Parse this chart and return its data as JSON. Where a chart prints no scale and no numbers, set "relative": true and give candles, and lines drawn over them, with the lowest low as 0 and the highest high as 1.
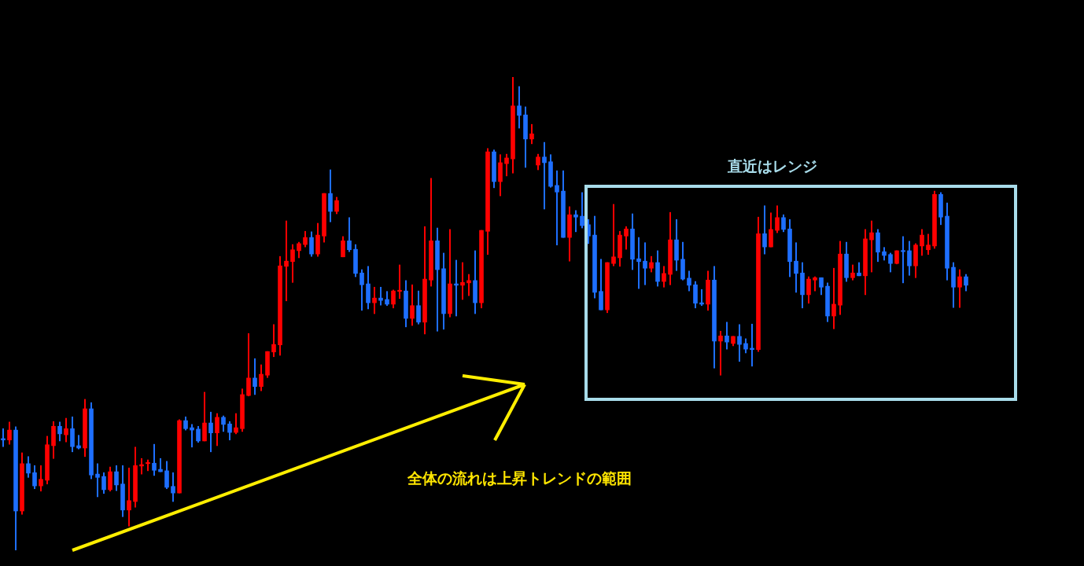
{
  "chart_data": {
    "type": "candlestick",
    "relative": true,
    "annotations": [
      "直近はレンジ",
      "全体の流れは上昇トレンドの範囲"
    ],
    "categories": [
      null,
      null,
      null,
      null,
      null,
      null,
      null,
      null,
      null,
      null,
      null,
      null,
      null,
      null,
      null,
      null,
      null,
      null,
      null,
      null,
      null,
      null,
      null,
      null,
      null,
      null,
      null,
      null,
      null,
      null,
      null,
      null,
      null,
      null,
      null,
      null,
      null,
      null,
      null,
      null,
      null,
      null,
      null,
      null,
      null,
      null,
      null,
      null,
      null,
      null,
      null,
      null,
      null,
      null,
      null,
      null,
      null,
      null,
      null,
      null,
      null,
      null,
      null,
      null,
      null,
      null,
      null,
      null,
      null,
      null,
      null,
      null,
      null,
      null,
      null,
      null,
      null,
      null,
      null,
      null,
      null,
      null,
      null,
      null,
      null,
      null,
      null,
      null,
      null,
      null,
      null,
      null,
      null,
      null,
      null,
      null,
      null,
      null,
      null,
      null,
      null,
      null,
      null,
      null,
      null,
      null,
      null,
      null,
      null,
      null,
      null,
      null,
      null,
      null,
      null,
      null,
      null,
      null,
      null,
      null,
      null,
      null,
      null,
      null,
      null,
      null,
      null,
      null,
      null,
      null,
      null,
      null,
      null,
      null,
      null,
      null,
      null,
      null,
      null,
      null,
      null,
      null,
      null,
      null,
      null,
      null,
      null,
      null,
      null,
      null,
      null,
      null,
      null,
      null
    ],
    "ohlc": [
      [
        0.236,
        0.257,
        0.219,
        0.233
      ],
      [
        0.233,
        0.271,
        0.224,
        0.254
      ],
      [
        0.254,
        0.261,
        0,
        0.083
      ],
      [
        0.083,
        0.206,
        0.076,
        0.183
      ],
      [
        0.183,
        0.198,
        0.154,
        0.163
      ],
      [
        0.164,
        0.179,
        0.13,
        0.136
      ],
      [
        0.136,
        0.179,
        0.125,
        0.15
      ],
      [
        0.148,
        0.241,
        0.14,
        0.223
      ],
      [
        0.221,
        0.272,
        0.194,
        0.262
      ],
      [
        0.262,
        0.271,
        0.231,
        0.246
      ],
      [
        0.244,
        0.279,
        0.229,
        0.257
      ],
      [
        0.257,
        0.282,
        0.208,
        0.219
      ],
      [
        0.221,
        0.243,
        0.214,
        0.216
      ],
      [
        0.216,
        0.319,
        0.198,
        0.299
      ],
      [
        0.299,
        0.312,
        0.151,
        0.159
      ],
      [
        0.161,
        0.183,
        0.113,
        0.154
      ],
      [
        0.156,
        0.164,
        0.12,
        0.128
      ],
      [
        0.128,
        0.176,
        0.125,
        0.166
      ],
      [
        0.166,
        0.179,
        0.126,
        0.138
      ],
      [
        0.14,
        0.179,
        0.071,
        0.085
      ],
      [
        0.085,
        0.174,
        0.051,
        0.105
      ],
      [
        0.103,
        0.218,
        0.091,
        0.179
      ],
      [
        0.178,
        0.194,
        0.161,
        0.181
      ],
      [
        0.183,
        0.191,
        0.168,
        0.184
      ],
      [
        0.184,
        0.224,
        0.158,
        0.169
      ],
      [
        0.171,
        0.194,
        0.166,
        0.166
      ],
      [
        0.168,
        0.188,
        0.13,
        0.133
      ],
      [
        0.135,
        0.164,
        0.103,
        0.121
      ],
      [
        0.121,
        0.276,
        0.121,
        0.274
      ],
      [
        0.274,
        0.282,
        0.254,
        0.257
      ],
      [
        0.259,
        0.266,
        0.218,
        0.254
      ],
      [
        0.256,
        0.262,
        0.228,
        0.231
      ],
      [
        0.231,
        0.334,
        0.231,
        0.269
      ],
      [
        0.269,
        0.292,
        0.208,
        0.248
      ],
      [
        0.248,
        0.289,
        0.221,
        0.281
      ],
      [
        0.281,
        0.284,
        0.251,
        0.266
      ],
      [
        0.267,
        0.272,
        0.233,
        0.249
      ],
      [
        0.249,
        0.289,
        0.246,
        0.259
      ],
      [
        0.257,
        0.341,
        0.251,
        0.329
      ],
      [
        0.327,
        0.458,
        0.326,
        0.364
      ],
      [
        0.364,
        0.405,
        0.329,
        0.346
      ],
      [
        0.346,
        0.392,
        0.337,
        0.372
      ],
      [
        0.37,
        0.42,
        0.365,
        0.42
      ],
      [
        0.419,
        0.477,
        0.409,
        0.435
      ],
      [
        0.434,
        0.621,
        0.412,
        0.601
      ],
      [
        0.6,
        0.696,
        0.527,
        0.611
      ],
      [
        0.61,
        0.646,
        0.566,
        0.635
      ],
      [
        0.633,
        0.651,
        0.618,
        0.648
      ],
      [
        0.646,
        0.674,
        0.641,
        0.661
      ],
      [
        0.661,
        0.673,
        0.621,
        0.626
      ],
      [
        0.626,
        0.691,
        0.621,
        0.666
      ],
      [
        0.664,
        0.754,
        0.651,
        0.754
      ],
      [
        0.754,
        0.804,
        0.694,
        0.716
      ],
      [
        0.716,
        0.746,
        0.711,
        0.739
      ],
      [
        0.62,
        0.663,
        0.62,
        0.654
      ],
      [
        0.654,
        0.703,
        0.631,
        0.635
      ],
      [
        0.636,
        0.646,
        0.578,
        0.585
      ],
      [
        0.586,
        0.593,
        0.507,
        0.561
      ],
      [
        0.563,
        0.6,
        0.51,
        0.523
      ],
      [
        0.523,
        0.556,
        0.5,
        0.533
      ],
      [
        0.533,
        0.556,
        0.518,
        0.528
      ],
      [
        0.53,
        0.547,
        0.517,
        0.52
      ],
      [
        0.52,
        0.55,
        0.512,
        0.548
      ],
      [
        0.547,
        0.603,
        0.532,
        0.548
      ],
      [
        0.548,
        0.57,
        0.472,
        0.49
      ],
      [
        0.49,
        0.561,
        0.475,
        0.517
      ],
      [
        0.517,
        0.548,
        0.478,
        0.482
      ],
      [
        0.482,
        0.684,
        0.457,
        0.573
      ],
      [
        0.571,
        0.786,
        0.558,
        0.654
      ],
      [
        0.654,
        0.681,
        0.463,
        0.593
      ],
      [
        0.595,
        0.628,
        0.467,
        0.5
      ],
      [
        0.5,
        0.678,
        0.493,
        0.563
      ],
      [
        0.563,
        0.613,
        0.495,
        0.56
      ],
      [
        0.56,
        0.608,
        0.53,
        0.566
      ],
      [
        0.565,
        0.583,
        0.538,
        0.57
      ],
      [
        0.57,
        0.633,
        0.5,
        0.523
      ],
      [
        0.523,
        0.676,
        0.512,
        0.676
      ],
      [
        0.674,
        0.849,
        0.625,
        0.842
      ],
      [
        0.842,
        0.846,
        0.766,
        0.779
      ],
      [
        0.779,
        0.836,
        0.749,
        0.819
      ],
      [
        0.817,
        0.837,
        0.791,
        0.829
      ],
      [
        0.827,
        1,
        0.797,
        0.939
      ],
      [
        0.939,
        0.98,
        0.892,
        0.919
      ],
      [
        0.92,
        0.937,
        0.809,
        0.869
      ],
      [
        0.869,
        0.9,
        0.859,
        0.88
      ],
      [
        0.814,
        0.837,
        0.804,
        0.831
      ],
      [
        0.831,
        0.862,
        0.721,
        0.819
      ],
      [
        0.821,
        0.836,
        0.767,
        0.769
      ],
      [
        0.771,
        0.802,
        0.645,
        0.757
      ],
      [
        0.759,
        0.802,
        0.661,
        0.661
      ],
      [
        0.661,
        0.726,
        0.611,
        0.709
      ],
      [
        0.709,
        0.718,
        0.673,
        0.704
      ],
      [
        0.706,
        0.756,
        0.681,
        0.686
      ],
      [
        0.688,
        0.699,
        0.648,
        0.664
      ],
      [
        0.666,
        0.706,
        0.533,
        0.545
      ],
      [
        0.547,
        0.615,
        0.508,
        0.508
      ],
      [
        0.508,
        0.608,
        0.502,
        0.608
      ],
      [
        0.606,
        0.731,
        0.601,
        0.62
      ],
      [
        0.618,
        0.674,
        0.6,
        0.666
      ],
      [
        0.664,
        0.684,
        0.636,
        0.679
      ],
      [
        0.679,
        0.711,
        0.593,
        0.615
      ],
      [
        0.616,
        0.661,
        0.553,
        0.61
      ],
      [
        0.611,
        0.65,
        0.561,
        0.596
      ],
      [
        0.596,
        0.621,
        0.588,
        0.608
      ],
      [
        0.608,
        0.633,
        0.558,
        0.568
      ],
      [
        0.568,
        0.6,
        0.556,
        0.585
      ],
      [
        0.583,
        0.714,
        0.561,
        0.656
      ],
      [
        0.656,
        0.699,
        0.591,
        0.613
      ],
      [
        0.615,
        0.651,
        0.571,
        0.573
      ],
      [
        0.575,
        0.59,
        0.548,
        0.56
      ],
      [
        0.561,
        0.568,
        0.512,
        0.522
      ],
      [
        0.523,
        0.551,
        0.517,
        0.52
      ],
      [
        0.52,
        0.59,
        0.507,
        0.571
      ],
      [
        0.571,
        0.6,
        0.385,
        0.442
      ],
      [
        0.442,
        0.463,
        0.37,
        0.453
      ],
      [
        0.453,
        0.482,
        0.425,
        0.44
      ],
      [
        0.437,
        0.452,
        0.432,
        0.452
      ],
      [
        0.452,
        0.477,
        0.399,
        0.435
      ],
      [
        0.437,
        0.447,
        0.417,
        0.425
      ],
      [
        0.427,
        0.478,
        0.389,
        0.424
      ],
      [
        0.424,
        0.704,
        0.42,
        0.669
      ],
      [
        0.669,
        0.728,
        0.626,
        0.641
      ],
      [
        0.641,
        0.713,
        0.641,
        0.678
      ],
      [
        0.676,
        0.728,
        0.671,
        0.703
      ],
      [
        0.703,
        0.709,
        0.673,
        0.678
      ],
      [
        0.679,
        0.699,
        0.578,
        0.61
      ],
      [
        0.611,
        0.65,
        0.545,
        0.585
      ],
      [
        0.586,
        0.608,
        0.512,
        0.54
      ],
      [
        0.54,
        0.578,
        0.522,
        0.573
      ],
      [
        0.571,
        0.578,
        0.548,
        0.576
      ],
      [
        0.576,
        0.576,
        0.54,
        0.556
      ],
      [
        0.558,
        0.565,
        0.483,
        0.495
      ],
      [
        0.495,
        0.596,
        0.468,
        0.52
      ],
      [
        0.518,
        0.653,
        0.498,
        0.626
      ],
      [
        0.626,
        0.651,
        0.568,
        0.576
      ],
      [
        0.576,
        0.603,
        0.571,
        0.586
      ],
      [
        0.586,
        0.608,
        0.58,
        0.58
      ],
      [
        0.58,
        0.678,
        0.54,
        0.658
      ],
      [
        0.656,
        0.696,
        0.588,
        0.671
      ],
      [
        0.671,
        0.678,
        0.61,
        0.63
      ],
      [
        0.631,
        0.64,
        0.613,
        0.623
      ],
      [
        0.625,
        0.628,
        0.588,
        0.606
      ],
      [
        0.606,
        0.633,
        0.605,
        0.633
      ],
      [
        0.633,
        0.663,
        0.565,
        0.631
      ],
      [
        0.633,
        0.653,
        0.581,
        0.601
      ],
      [
        0.601,
        0.648,
        0.576,
        0.645
      ],
      [
        0.643,
        0.678,
        0.623,
        0.666
      ],
      [
        0.635,
        0.668,
        0.625,
        0.645
      ],
      [
        0.643,
        0.759,
        0.638,
        0.752
      ],
      [
        0.752,
        0.756,
        0.688,
        0.704
      ],
      [
        0.706,
        0.734,
        0.571,
        0.596
      ],
      [
        0.598,
        0.608,
        0.513,
        0.556
      ],
      [
        0.556,
        0.593,
        0.513,
        0.578
      ],
      [
        0.578,
        0.583,
        0.548,
        0.56
      ]
    ],
    "colors": [
      "#1e6fff",
      "#ff0000",
      "#1e6fff",
      "#ff0000",
      "#1e6fff",
      "#1e6fff",
      "#ff0000",
      "#ff0000",
      "#ff0000",
      "#1e6fff",
      "#ff0000",
      "#1e6fff",
      "#1e6fff",
      "#ff0000",
      "#1e6fff",
      "#1e6fff",
      "#1e6fff",
      "#ff0000",
      "#1e6fff",
      "#1e6fff",
      "#ff0000",
      "#ff0000",
      "#ff0000",
      "#ff0000",
      "#1e6fff",
      "#1e6fff",
      "#1e6fff",
      "#1e6fff",
      "#ff0000",
      "#1e6fff",
      "#1e6fff",
      "#1e6fff",
      "#ff0000",
      "#1e6fff",
      "#ff0000",
      "#1e6fff",
      "#1e6fff",
      "#ff0000",
      "#ff0000",
      "#ff0000",
      "#1e6fff",
      "#ff0000",
      "#ff0000",
      "#ff0000",
      "#ff0000",
      "#ff0000",
      "#ff0000",
      "#ff0000",
      "#ff0000",
      "#1e6fff",
      "#ff0000",
      "#ff0000",
      "#1e6fff",
      "#ff0000",
      "#ff0000",
      "#1e6fff",
      "#1e6fff",
      "#1e6fff",
      "#1e6fff",
      "#ff0000",
      "#1e6fff",
      "#1e6fff",
      "#ff0000",
      "#ff0000",
      "#1e6fff",
      "#ff0000",
      "#1e6fff",
      "#ff0000",
      "#ff0000",
      "#1e6fff",
      "#1e6fff",
      "#ff0000",
      "#1e6fff",
      "#ff0000",
      "#ff0000",
      "#1e6fff",
      "#ff0000",
      "#ff0000",
      "#1e6fff",
      "#ff0000",
      "#ff0000",
      "#ff0000",
      "#1e6fff",
      "#1e6fff",
      "#ff0000",
      "#ff0000",
      "#1e6fff",
      "#1e6fff",
      "#1e6fff",
      "#1e6fff",
      "#ff0000",
      "#1e6fff",
      "#1e6fff",
      "#1e6fff",
      "#1e6fff",
      "#1e6fff",
      "#ff0000",
      "#ff0000",
      "#ff0000",
      "#ff0000",
      "#1e6fff",
      "#1e6fff",
      "#1e6fff",
      "#ff0000",
      "#1e6fff",
      "#ff0000",
      "#ff0000",
      "#1e6fff",
      "#1e6fff",
      "#1e6fff",
      "#1e6fff",
      "#1e6fff",
      "#ff0000",
      "#1e6fff",
      "#ff0000",
      "#1e6fff",
      "#ff0000",
      "#1e6fff",
      "#1e6fff",
      "#1e6fff",
      "#ff0000",
      "#1e6fff",
      "#ff0000",
      "#ff0000",
      "#1e6fff",
      "#1e6fff",
      "#1e6fff",
      "#1e6fff",
      "#ff0000",
      "#ff0000",
      "#1e6fff",
      "#1e6fff",
      "#ff0000",
      "#ff0000",
      "#1e6fff",
      "#ff0000",
      "#1e6fff",
      "#ff0000",
      "#ff0000",
      "#1e6fff",
      "#1e6fff",
      "#1e6fff",
      "#ff0000",
      "#1e6fff",
      "#1e6fff",
      "#ff0000",
      "#ff0000",
      "#ff0000",
      "#ff0000",
      "#1e6fff",
      "#1e6fff",
      "#1e6fff",
      "#ff0000",
      "#1e6fff"
    ]
  }
}
